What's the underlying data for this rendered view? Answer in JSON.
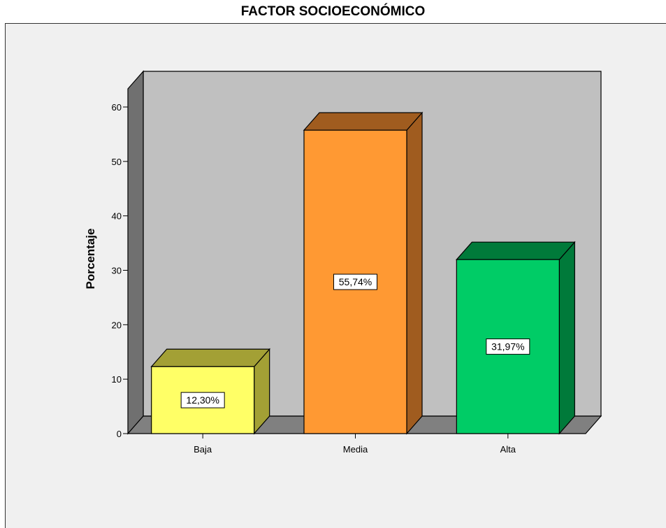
{
  "chart_data": {
    "type": "bar",
    "title": "FACTOR SOCIOECONÓMICO",
    "xlabel": "",
    "ylabel": "Porcentaje",
    "categories": [
      "Baja",
      "Media",
      "Alta"
    ],
    "values": [
      12.3,
      55.74,
      31.97
    ],
    "data_labels": [
      "12,30%",
      "55,74%",
      "31,97%"
    ],
    "ylim": [
      0,
      60
    ],
    "yticks": [
      0,
      10,
      20,
      30,
      40,
      50,
      60
    ],
    "grid": false,
    "legend": "none",
    "three_d": true,
    "colors": {
      "bars": [
        "#ffff66",
        "#ff9933",
        "#00cc66"
      ],
      "bar_tops": [
        "#a3a035",
        "#a05c1f",
        "#007a3a"
      ],
      "bar_sides": [
        "#a3a035",
        "#a05c1f",
        "#007a3a"
      ],
      "back_wall": "#c0c0c0",
      "side_wall": "#707070",
      "floor": "#808080",
      "frame_background": "#f0f0f0"
    }
  }
}
